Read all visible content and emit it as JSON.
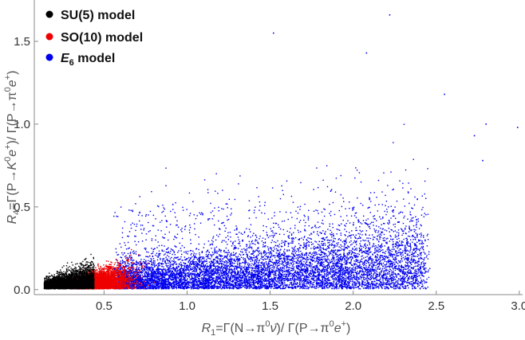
{
  "chart_data": {
    "type": "scatter",
    "xlabel": "R₁=Γ(N→π⁰ν̄) / Γ(P→π⁰e⁺)",
    "ylabel": "R₄=Γ(P→K⁰e⁺) / Γ(P→π⁰e⁺)",
    "xlim": [
      0.08,
      3.02
    ],
    "ylim": [
      -0.03,
      1.75
    ],
    "xticks": [
      "0.5",
      "1.0",
      "1.5",
      "2.0",
      "2.5",
      "3.0"
    ],
    "yticks": [
      "0.0",
      "0.5",
      "1.0",
      "1.5"
    ],
    "legend_position": "top-left",
    "series": [
      {
        "name": "E₆ model",
        "color": "#0000ee",
        "cloud": {
          "x_range": [
            0.55,
            2.95
          ],
          "y_base": [
            0.0,
            1.7
          ],
          "center_x": 1.25,
          "center_y": 0.27,
          "count": 9000
        },
        "outliers": [
          [
            2.22,
            1.66
          ],
          [
            1.52,
            1.55
          ],
          [
            2.08,
            1.43
          ],
          [
            2.55,
            1.18
          ],
          [
            2.8,
            1.0
          ],
          [
            2.99,
            0.98
          ],
          [
            2.78,
            0.78
          ],
          [
            2.73,
            0.93
          ]
        ]
      },
      {
        "name": "SO(10) model",
        "color": "#ee0000",
        "cloud": {
          "x_range": [
            0.28,
            0.95
          ],
          "y_base": [
            0.0,
            0.58
          ],
          "center_x": 0.6,
          "center_y": 0.12,
          "count": 6000
        }
      },
      {
        "name": "SU(5) model",
        "color": "#000000",
        "cloud": {
          "x_range": [
            0.14,
            0.44
          ],
          "y_base": [
            0.0,
            0.38
          ],
          "center_x": 0.25,
          "center_y": 0.1,
          "count": 3500
        }
      }
    ]
  },
  "legend": {
    "items": [
      {
        "label": "SU(5) model",
        "color": "#000000"
      },
      {
        "label": "SO(10) model",
        "color": "#ee0000"
      },
      {
        "label_main": "E",
        "label_sub": "6",
        "label_rest": " model",
        "color": "#0000ee"
      }
    ]
  },
  "axes": {
    "x_title": {
      "R": "R",
      "sub": "1",
      "eq": "=Γ(N→π",
      "sup1": "0",
      "nu": "ν̄",
      "mid": ")/ Γ(P→π",
      "sup2": "0",
      "e": "e",
      "sup3": "+",
      "end": ")"
    },
    "y_title": {
      "R": "R",
      "sub": "4",
      "eq": "=Γ(P→",
      "K": "K",
      "sup1": "0",
      "e": "e",
      "sup2": "+",
      "mid": ")/ Γ(P→π",
      "sup3": "0",
      "e2": "e",
      "sup4": "+",
      "end": ")"
    }
  }
}
